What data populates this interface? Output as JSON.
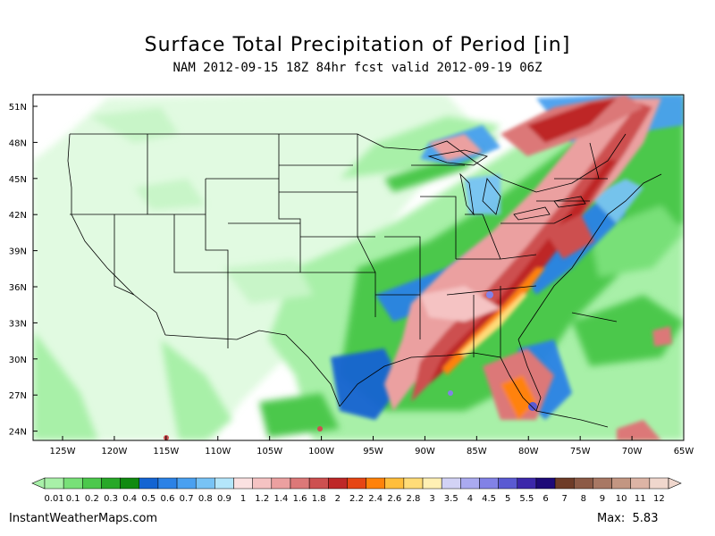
{
  "title": "Surface Total Precipitation of Period [in]",
  "subtitle": "NAM 2012-09-15 18Z 84hr fcst valid 2012-09-19 06Z",
  "lat_labels": [
    "51N",
    "48N",
    "45N",
    "42N",
    "39N",
    "36N",
    "33N",
    "30N",
    "27N",
    "24N"
  ],
  "lon_labels": [
    "125W",
    "120W",
    "115W",
    "110W",
    "105W",
    "100W",
    "95W",
    "90W",
    "85W",
    "80W",
    "75W",
    "70W",
    "65W"
  ],
  "legend": {
    "labels": [
      "0.01",
      "0.1",
      "0.2",
      "0.3",
      "0.4",
      "0.5",
      "0.6",
      "0.7",
      "0.8",
      "0.9",
      "1",
      "1.2",
      "1.4",
      "1.6",
      "1.8",
      "2",
      "2.2",
      "2.4",
      "2.6",
      "2.8",
      "3",
      "3.5",
      "4",
      "4.5",
      "5",
      "5.5",
      "6",
      "7",
      "8",
      "9",
      "10",
      "11",
      "12"
    ],
    "colors": [
      "#a8f0a8",
      "#78e078",
      "#4cc84c",
      "#28a828",
      "#108a10",
      "#1464d2",
      "#2c82e6",
      "#4aa0f0",
      "#78c3f5",
      "#b4e6fa",
      "#fae1e1",
      "#f5c3c3",
      "#eba0a0",
      "#dc7878",
      "#cd5050",
      "#be2828",
      "#e64614",
      "#ff820a",
      "#ffbe3c",
      "#ffdc78",
      "#fff0b4",
      "#d2d2f5",
      "#aaaaf0",
      "#8282e6",
      "#5a5ad2",
      "#3c28aa",
      "#1e0a78",
      "#6e3c28",
      "#8c5a46",
      "#a87864",
      "#c39682",
      "#dcb4a5",
      "#f0d7cd"
    ]
  },
  "footer": {
    "site": "InstantWeatherMaps.com",
    "max_label": "Max:",
    "max_value": "5.83"
  }
}
